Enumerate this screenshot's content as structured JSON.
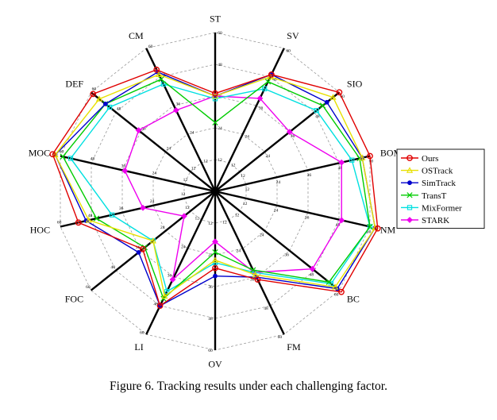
{
  "caption": "Figure 6. Tracking results under each challenging factor.",
  "chart_data": {
    "type": "radar",
    "title": "",
    "axes": [
      "ST",
      "SV",
      "SIO",
      "BOM",
      "NM",
      "BC",
      "FM",
      "OV",
      "LI",
      "FOC",
      "HOC",
      "MOC",
      "DEF",
      "CM"
    ],
    "axis_max": 60,
    "grid_rings": [
      12,
      24,
      36,
      48,
      60
    ],
    "tick_labels": [
      "12",
      "24",
      "36",
      "48",
      "60"
    ],
    "grid": true,
    "legend_position": "right",
    "series": [
      {
        "name": "Ours",
        "color": "#e00000",
        "marker": "circle",
        "values": [
          37,
          49,
          60,
          60,
          63,
          61,
          37,
          29,
          48,
          35,
          53,
          63,
          59,
          51
        ]
      },
      {
        "name": "OSTrack",
        "color": "#e8e000",
        "marker": "triangle",
        "values": [
          36,
          48,
          57,
          57,
          62,
          58,
          35,
          26,
          44,
          30,
          49,
          62,
          56,
          49
        ]
      },
      {
        "name": "SimTrack",
        "color": "#0000cc",
        "marker": "dot",
        "values": [
          36,
          49,
          54,
          57,
          62,
          59,
          36,
          32,
          48,
          37,
          50,
          62,
          53,
          50
        ]
      },
      {
        "name": "TransT",
        "color": "#00cc00",
        "marker": "x",
        "values": [
          26,
          46,
          52,
          56,
          60,
          55,
          33,
          23,
          45,
          34,
          46,
          59,
          53,
          47
        ]
      },
      {
        "name": "MixFormer",
        "color": "#00e0e0",
        "marker": "square",
        "values": [
          35,
          43,
          49,
          53,
          60,
          56,
          34,
          27,
          42,
          30,
          40,
          56,
          51,
          45
        ]
      },
      {
        "name": "STARK",
        "color": "#ee00ee",
        "marker": "diamond",
        "values": [
          36,
          39,
          36,
          49,
          49,
          47,
          34,
          19,
          37,
          15,
          28,
          35,
          37,
          34
        ]
      }
    ]
  }
}
